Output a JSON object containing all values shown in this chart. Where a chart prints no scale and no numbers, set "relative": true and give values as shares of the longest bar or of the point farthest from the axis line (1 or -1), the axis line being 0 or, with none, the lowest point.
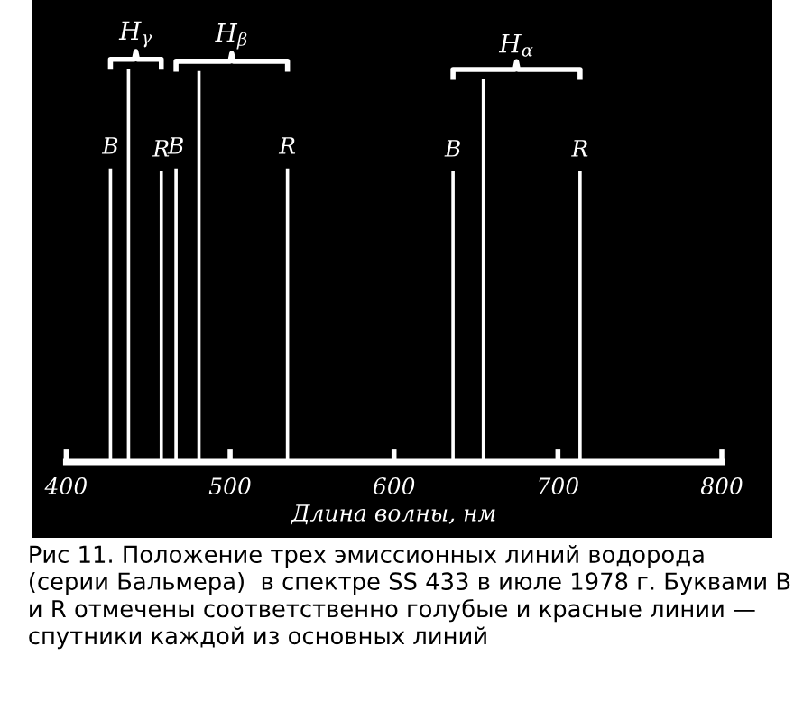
{
  "chart_data": {
    "type": "bar",
    "relative": true,
    "xlabel": "Длина волны, нм",
    "xlim": [
      400,
      800
    ],
    "xticks": [
      400,
      500,
      600,
      700,
      800
    ],
    "grid": false,
    "legend": false,
    "series": [
      {
        "name": "H$_{γ}$",
        "color": "#ffffff",
        "x": [
          427,
          438,
          458
        ],
        "values": [
          0.747,
          1,
          0.74
        ]
      },
      {
        "name": "H$_{β}$",
        "color": "#ffffff",
        "x": [
          467,
          481,
          535
        ],
        "values": [
          0.747,
          0.995,
          0.747
        ]
      },
      {
        "name": "H$_{α}$",
        "color": "#ffffff",
        "x": [
          636,
          654.5,
          713.5
        ],
        "values": [
          0.74,
          0.974,
          0.74
        ]
      }
    ],
    "annotations": [
      {
        "text": "B",
        "x": 427,
        "y": 0.747
      },
      {
        "text": "R",
        "x": 458,
        "y": 0.74
      },
      {
        "text": "B",
        "x": 467,
        "y": 0.747
      },
      {
        "text": "R",
        "x": 535,
        "y": 0.747
      },
      {
        "text": "B",
        "x": 636,
        "y": 0.74
      },
      {
        "text": "R",
        "x": 713.5,
        "y": 0.74
      },
      "Рис 11. Положение трех эмиссионных линий водорода (серии Бальмера)  в спектре SS 433 в июле 1978 г. Буквами B и R отмечены соответственно голубые и красные линии — спутники каждой из основных линий"
    ]
  }
}
